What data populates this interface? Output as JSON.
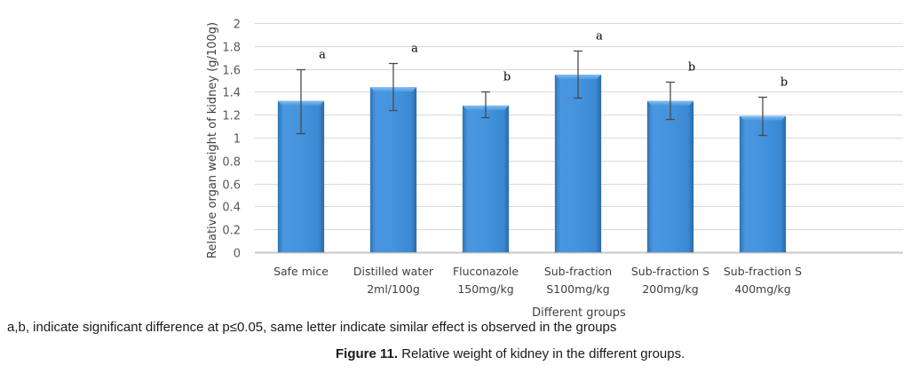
{
  "chart_data": {
    "type": "bar",
    "title": "",
    "xlabel": "Different groups",
    "ylabel": "Relative organ weight of kidney (g/100g)",
    "ylim": [
      0,
      2
    ],
    "yticks": [
      0,
      0.2,
      0.4,
      0.6,
      0.8,
      1,
      1.2,
      1.4,
      1.6,
      1.8,
      2
    ],
    "ytick_labels": [
      "0",
      "0.2",
      "0.4",
      "0.6",
      "0.8",
      "1",
      "1.2",
      "1.4",
      "1.6",
      "1.8",
      "2"
    ],
    "grid": true,
    "legend": "none",
    "categories": [
      [
        "Safe mice"
      ],
      [
        "Distilled water",
        "2ml/100g"
      ],
      [
        "Fluconazole",
        "150mg/kg"
      ],
      [
        "Sub-fraction",
        "S100mg/kg"
      ],
      [
        "Sub-fraction S",
        "200mg/kg"
      ],
      [
        "Sub-fraction S",
        "400mg/kg"
      ]
    ],
    "values": [
      1.32,
      1.44,
      1.28,
      1.55,
      1.32,
      1.19
    ],
    "error_low": [
      1.04,
      1.24,
      1.18,
      1.35,
      1.16,
      1.02
    ],
    "error_high": [
      1.6,
      1.65,
      1.4,
      1.76,
      1.49,
      1.36
    ],
    "significance_letters": [
      "a",
      "a",
      "b",
      "a",
      "b",
      "b"
    ],
    "bar_color": "#3d8ad6"
  },
  "note": "a,b, indicate significant difference at p≤0.05, same letter indicate  similar effect is observed in  the groups",
  "caption": {
    "label": "Figure 11.",
    "text": " Relative weight of kidney in the different groups."
  }
}
